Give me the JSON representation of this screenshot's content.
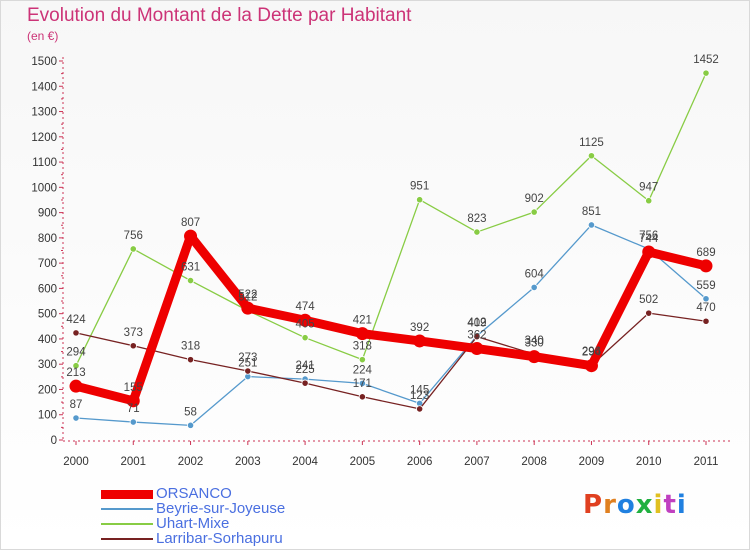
{
  "header": {
    "title": "Evolution du Montant de la Dette par Habitant",
    "unit": "(en €)"
  },
  "brand": {
    "text": "Proxiti",
    "colors": [
      "#e04020",
      "#e08020",
      "#2080e0",
      "#20b040",
      "#e0c020",
      "#c040c0",
      "#2080e0"
    ]
  },
  "chart_data": {
    "type": "line",
    "title": "Evolution du Montant de la Dette par Habitant",
    "ylabel": "(en €)",
    "x": [
      "2000",
      "2001",
      "2002",
      "2003",
      "2004",
      "2005",
      "2006",
      "2007",
      "2008",
      "2009",
      "2010",
      "2011"
    ],
    "ylim": [
      0,
      1500
    ],
    "yticks": [
      0,
      100,
      200,
      300,
      400,
      500,
      600,
      700,
      800,
      900,
      1000,
      1100,
      1200,
      1300,
      1400,
      1500
    ],
    "grid": false,
    "legend_position": "bottom-left",
    "series": [
      {
        "name": "ORSANCO",
        "color": "#ee0000",
        "emphasis": true,
        "values": [
          213,
          155,
          807,
          522,
          474,
          421,
          392,
          362,
          330,
          294,
          744,
          689
        ],
        "labels": [
          "213",
          "155",
          "807",
          "522",
          "474",
          "421",
          "392",
          "362",
          "330",
          "294",
          "744",
          "689"
        ]
      },
      {
        "name": "Beyrie-sur-Joyeuse",
        "color": "#5599cc",
        "emphasis": false,
        "values": [
          87,
          71,
          58,
          251,
          241,
          224,
          145,
          412,
          604,
          851,
          756,
          559
        ],
        "labels": [
          "87",
          "71",
          "58",
          "251",
          "241",
          "224",
          "145",
          "412",
          "604",
          "851",
          "756",
          "559"
        ]
      },
      {
        "name": "Uhart-Mixe",
        "color": "#88cc44",
        "emphasis": false,
        "values": [
          294,
          756,
          631,
          512,
          405,
          318,
          951,
          823,
          902,
          1125,
          947,
          1452
        ],
        "labels": [
          "294",
          "756",
          "631",
          "512",
          "405",
          "318",
          "951",
          "823",
          "902",
          "1125",
          "947",
          "1452"
        ]
      },
      {
        "name": "Larribar-Sorhapuru",
        "color": "#772222",
        "emphasis": false,
        "values": [
          424,
          373,
          318,
          273,
          225,
          171,
          123,
          409,
          340,
          296,
          502,
          470
        ],
        "labels": [
          "424",
          "373",
          "318",
          "273",
          "225",
          "171",
          "123",
          "409",
          "340",
          "296",
          "502",
          "470"
        ]
      }
    ]
  }
}
